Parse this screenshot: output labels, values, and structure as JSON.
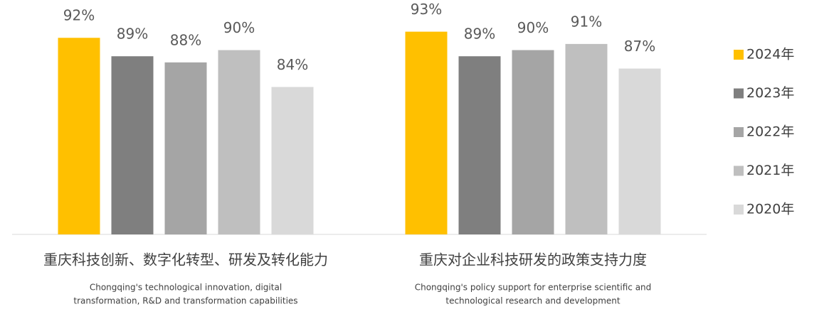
{
  "chart_data": {
    "type": "bar",
    "categories": [
      "重庆科技创新、数字化转型、研发及转化能力",
      "重庆对企业科技研发的政策支持力度"
    ],
    "subtitles": [
      [
        "Chongqing's technological innovation, digital",
        "transformation, R&D and transformation capabilities"
      ],
      [
        "Chongqing's policy support for enterprise scientific and",
        "technological research and development"
      ]
    ],
    "series": [
      {
        "name": "2024年",
        "color": "#FFC000",
        "values": [
          92,
          93
        ],
        "value_labels": [
          "92%",
          "93%"
        ]
      },
      {
        "name": "2023年",
        "color": "#7F7F7F",
        "values": [
          89,
          89
        ],
        "value_labels": [
          "89%",
          "89%"
        ]
      },
      {
        "name": "2022年",
        "color": "#A5A5A5",
        "values": [
          88,
          90
        ],
        "value_labels": [
          "88%",
          "90%"
        ]
      },
      {
        "name": "2021年",
        "color": "#BFBFBF",
        "values": [
          90,
          91
        ],
        "value_labels": [
          "90%",
          "91%"
        ]
      },
      {
        "name": "2020年",
        "color": "#D9D9D9",
        "values": [
          84,
          87
        ],
        "value_labels": [
          "84%",
          "87%"
        ]
      }
    ],
    "ylim": [
      60,
      97
    ],
    "legend": "right"
  }
}
